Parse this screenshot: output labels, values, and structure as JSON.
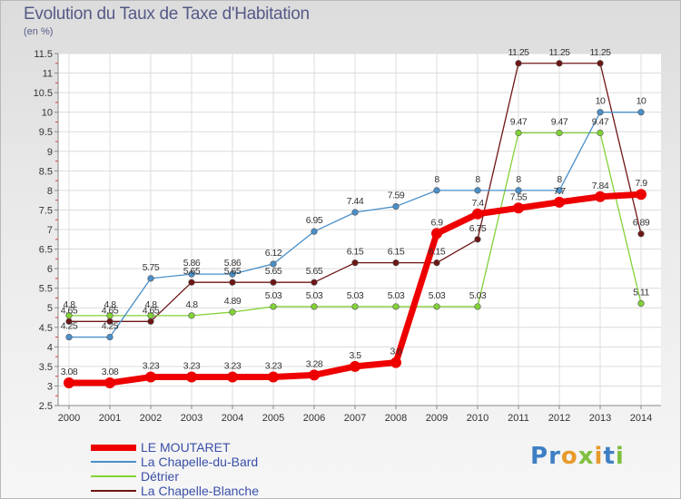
{
  "header": {
    "title": "Evolution du Taux de Taxe d'Habitation",
    "unit": "(en %)"
  },
  "logo": {
    "text": "Proxiti"
  },
  "chart_data": {
    "type": "line",
    "title": "Evolution du Taux de Taxe d'Habitation",
    "ylabel": "(en %)",
    "xlabel": "",
    "x": [
      "2000",
      "2001",
      "2002",
      "2003",
      "2004",
      "2005",
      "2006",
      "2007",
      "2008",
      "2009",
      "2010",
      "2011",
      "2012",
      "2013",
      "2014"
    ],
    "ylim": [
      2.5,
      11.5
    ],
    "yticks": [
      "2.5",
      "3",
      "3.5",
      "4",
      "4.5",
      "5",
      "5.5",
      "6",
      "6.5",
      "7",
      "7.5",
      "8",
      "8.5",
      "9",
      "9.5",
      "10",
      "10.5",
      "11",
      "11.5"
    ],
    "grid": true,
    "legend_position": "bottom-left",
    "series": [
      {
        "name": "LE MOUTARET",
        "color": "#ee0000",
        "values": [
          3.08,
          3.08,
          3.23,
          3.23,
          3.23,
          3.23,
          3.28,
          3.5,
          3.6,
          6.9,
          7.4,
          7.55,
          7.7,
          7.84,
          7.9
        ],
        "labels": [
          "3.08",
          "3.08",
          "3.23",
          "3.23",
          "3.23",
          "3.23",
          "3.28",
          "3.5",
          "3.6",
          "6.9",
          "7.4",
          "7.55",
          "7.7",
          "7.84",
          "7.9"
        ]
      },
      {
        "name": "La Chapelle-du-Bard",
        "color": "#4a8fc8",
        "values": [
          4.25,
          4.25,
          5.75,
          5.86,
          5.86,
          6.12,
          6.95,
          7.44,
          7.59,
          8,
          8,
          8,
          8,
          10,
          10
        ],
        "labels": [
          "4.25",
          "4.25",
          "5.75",
          "5.86",
          "5.86",
          "6.12",
          "6.95",
          "7.44",
          "7.59",
          "8",
          "8",
          "8",
          "8",
          "10",
          "10"
        ]
      },
      {
        "name": "Détrier",
        "color": "#82d236",
        "values": [
          4.8,
          4.8,
          4.8,
          4.8,
          4.89,
          5.03,
          5.03,
          5.03,
          5.03,
          5.03,
          5.03,
          9.47,
          9.47,
          9.47,
          5.11
        ],
        "labels": [
          "4.8",
          "4.8",
          "4.8",
          "4.8",
          "4.89",
          "5.03",
          "5.03",
          "5.03",
          "5.03",
          "5.03",
          "5.03",
          "9.47",
          "9.47",
          "9.47",
          "5.11"
        ]
      },
      {
        "name": "La Chapelle-Blanche",
        "color": "#6e1515",
        "values": [
          4.65,
          4.65,
          4.65,
          5.65,
          5.65,
          5.65,
          5.65,
          6.15,
          6.15,
          6.15,
          6.75,
          11.25,
          11.25,
          11.25,
          6.89
        ],
        "labels": [
          "4.65",
          "4.65",
          "4.65",
          "5.65",
          "5.65",
          "5.65",
          "5.65",
          "6.15",
          "6.15",
          "6.15",
          "6.75",
          "11.25",
          "11.25",
          "11.25",
          "6.89"
        ]
      }
    ]
  }
}
